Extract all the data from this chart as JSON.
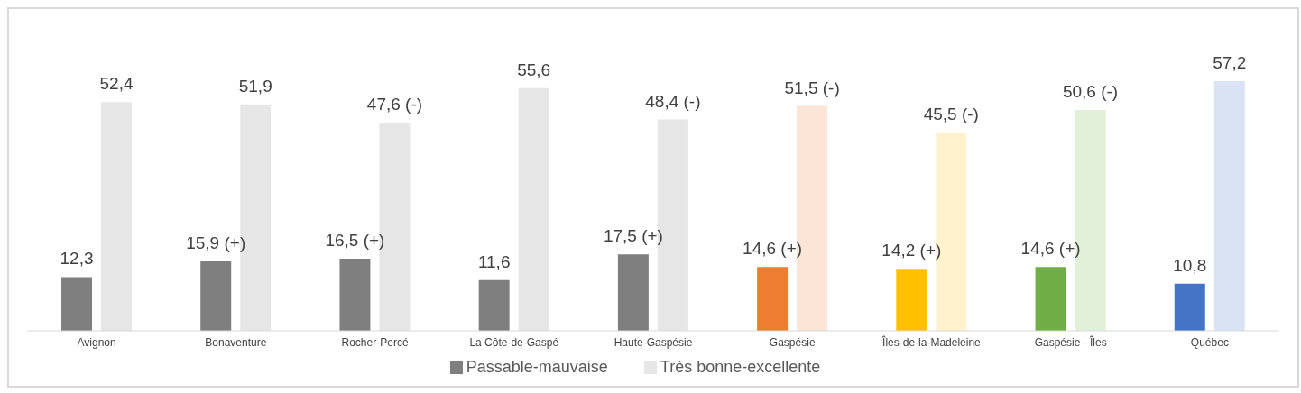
{
  "chart_data": {
    "type": "bar",
    "categories": [
      "Avignon",
      "Bonaventure",
      "Rocher-Percé",
      "La Côte-de-Gaspé",
      "Haute-Gaspésie",
      "Gaspésie",
      "Îles-de-la-Madeleine",
      "Gaspésie - Îles",
      "Québec"
    ],
    "series": [
      {
        "name": "Passable-mauvaise",
        "color": "#7f7f7f",
        "colors": [
          "#7f7f7f",
          "#7f7f7f",
          "#7f7f7f",
          "#7f7f7f",
          "#7f7f7f",
          "#ed7d31",
          "#ffc000",
          "#70ad47",
          "#4472c4"
        ],
        "values": [
          12.3,
          15.9,
          16.5,
          11.6,
          17.5,
          14.6,
          14.2,
          14.6,
          10.8
        ],
        "value_labels": [
          "12,3",
          "15,9 (+)",
          "16,5 (+)",
          "11,6",
          "17,5 (+)",
          "14,6 (+)",
          "14,2 (+)",
          "14,6 (+)",
          "10,8"
        ]
      },
      {
        "name": "Très bonne-excellente",
        "color": "#e7e6e6",
        "colors": [
          "#e7e6e6",
          "#e7e6e6",
          "#e7e6e6",
          "#e7e6e6",
          "#e7e6e6",
          "#fbe5d6",
          "#fff2cc",
          "#e2f0d9",
          "#dae3f3"
        ],
        "values": [
          52.4,
          51.9,
          47.6,
          55.6,
          48.4,
          51.5,
          45.5,
          50.6,
          57.2
        ],
        "value_labels": [
          "52,4",
          "51,9",
          "47,6 (-)",
          "55,6",
          "48,4 (-)",
          "51,5 (-)",
          "45,5 (-)",
          "50,6 (-)",
          "57,2"
        ]
      }
    ],
    "legend": "bottom"
  }
}
